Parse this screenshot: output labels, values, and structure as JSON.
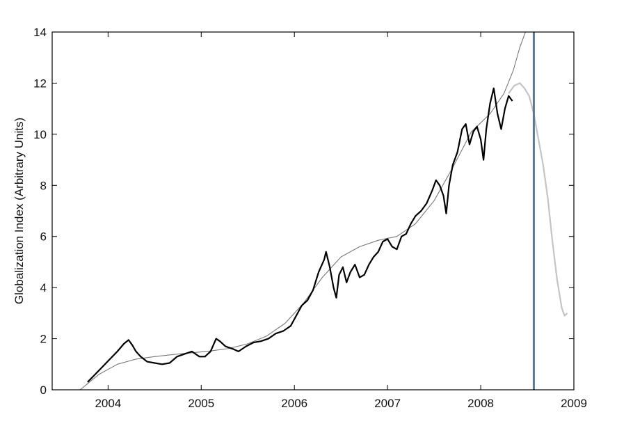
{
  "chart_data": {
    "type": "line",
    "title": "",
    "xlabel": "",
    "ylabel": "Globalization Index (Arbitrary Units)",
    "xlim": [
      2003.4,
      2009.0
    ],
    "ylim": [
      0,
      14
    ],
    "x_ticks": [
      2004,
      2005,
      2006,
      2007,
      2008,
      2009
    ],
    "x_tick_labels": [
      "2004",
      "2005",
      "2006",
      "2007",
      "2008",
      "2009"
    ],
    "y_ticks": [
      0,
      2,
      4,
      6,
      8,
      10,
      12,
      14
    ],
    "y_tick_labels": [
      "0",
      "2",
      "4",
      "6",
      "8",
      "10",
      "12",
      "14"
    ],
    "grid": false,
    "vertical_marker": {
      "x": 2008.57,
      "color": "#5b7a8c"
    },
    "colors": {
      "index": "#000000",
      "fit": "#777777",
      "projection": "#c4c4c4"
    },
    "series": [
      {
        "key": "index",
        "x": [
          2003.78,
          2003.86,
          2003.94,
          2004.02,
          2004.1,
          2004.17,
          2004.22,
          2004.26,
          2004.3,
          2004.35,
          2004.42,
          2004.5,
          2004.58,
          2004.66,
          2004.74,
          2004.82,
          2004.9,
          2004.98,
          2005.04,
          2005.1,
          2005.16,
          2005.2,
          2005.26,
          2005.34,
          2005.4,
          2005.48,
          2005.56,
          2005.64,
          2005.72,
          2005.8,
          2005.88,
          2005.96,
          2006.02,
          2006.08,
          2006.14,
          2006.2,
          2006.26,
          2006.32,
          2006.34,
          2006.38,
          2006.42,
          2006.45,
          2006.48,
          2006.52,
          2006.56,
          2006.6,
          2006.65,
          2006.7,
          2006.75,
          2006.8,
          2006.85,
          2006.9,
          2006.95,
          2007.0,
          2007.05,
          2007.1,
          2007.15,
          2007.2,
          2007.25,
          2007.3,
          2007.36,
          2007.42,
          2007.48,
          2007.52,
          2007.56,
          2007.6,
          2007.63,
          2007.66,
          2007.7,
          2007.75,
          2007.8,
          2007.84,
          2007.88,
          2007.92,
          2007.96,
          2008.0,
          2008.03,
          2008.06,
          2008.1,
          2008.14,
          2008.18,
          2008.22,
          2008.26,
          2008.3,
          2008.34
        ],
        "y": [
          0.3,
          0.6,
          0.9,
          1.2,
          1.5,
          1.8,
          1.95,
          1.75,
          1.5,
          1.3,
          1.1,
          1.05,
          1.0,
          1.05,
          1.3,
          1.4,
          1.5,
          1.3,
          1.3,
          1.5,
          2.0,
          1.9,
          1.7,
          1.6,
          1.5,
          1.7,
          1.85,
          1.9,
          2.0,
          2.2,
          2.3,
          2.5,
          2.9,
          3.3,
          3.5,
          3.9,
          4.6,
          5.1,
          5.4,
          4.8,
          4.0,
          3.6,
          4.5,
          4.8,
          4.2,
          4.6,
          4.9,
          4.4,
          4.5,
          4.9,
          5.2,
          5.4,
          5.8,
          5.9,
          5.6,
          5.5,
          6.0,
          6.1,
          6.5,
          6.8,
          7.0,
          7.3,
          7.8,
          8.2,
          8.0,
          7.6,
          6.9,
          8.0,
          8.8,
          9.3,
          10.2,
          10.4,
          9.6,
          10.1,
          10.3,
          9.8,
          9.0,
          10.2,
          11.2,
          11.8,
          10.8,
          10.2,
          11.0,
          11.5,
          11.3
        ]
      },
      {
        "key": "fit",
        "x": [
          2003.7,
          2003.9,
          2004.1,
          2004.3,
          2004.5,
          2004.7,
          2004.9,
          2005.1,
          2005.3,
          2005.5,
          2005.7,
          2005.9,
          2006.1,
          2006.3,
          2006.5,
          2006.7,
          2006.9,
          2007.1,
          2007.3,
          2007.5,
          2007.7,
          2007.9,
          2008.1,
          2008.25,
          2008.35,
          2008.42,
          2008.48
        ],
        "y": [
          0.0,
          0.6,
          1.0,
          1.2,
          1.3,
          1.38,
          1.45,
          1.52,
          1.62,
          1.8,
          2.1,
          2.6,
          3.4,
          4.4,
          5.2,
          5.6,
          5.85,
          6.0,
          6.5,
          7.4,
          8.7,
          10.1,
          10.8,
          11.6,
          12.5,
          13.4,
          14.0
        ]
      },
      {
        "key": "projection",
        "x": [
          2008.3,
          2008.36,
          2008.42,
          2008.47,
          2008.52,
          2008.57,
          2008.62,
          2008.67,
          2008.72,
          2008.77,
          2008.82,
          2008.87,
          2008.9,
          2008.93
        ],
        "y": [
          11.6,
          11.9,
          12.0,
          11.8,
          11.5,
          10.8,
          9.8,
          8.8,
          7.5,
          5.8,
          4.3,
          3.2,
          2.9,
          3.0
        ]
      }
    ]
  }
}
